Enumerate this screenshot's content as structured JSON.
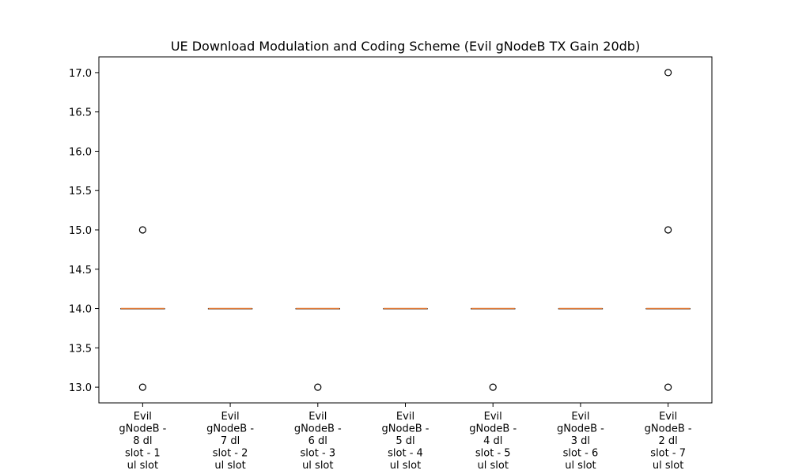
{
  "chart_data": {
    "type": "box",
    "title": "UE Download Modulation and Coding Scheme (Evil gNodeB TX Gain 20db)",
    "xlabel": "",
    "ylabel": "",
    "ylim": [
      12.8,
      17.2
    ],
    "yticks": [
      13.0,
      13.5,
      14.0,
      14.5,
      15.0,
      15.5,
      16.0,
      16.5,
      17.0
    ],
    "ytick_labels": [
      "13.0",
      "13.5",
      "14.0",
      "14.5",
      "15.0",
      "15.5",
      "16.0",
      "16.5",
      "17.0"
    ],
    "grid": false,
    "median_color": "#e07b39",
    "categories": [
      [
        "Evil",
        "gNodeB -",
        "8 dl",
        "slot - 1",
        "ul slot"
      ],
      [
        "Evil",
        "gNodeB -",
        "7 dl",
        "slot - 2",
        "ul slot"
      ],
      [
        "Evil",
        "gNodeB -",
        "6 dl",
        "slot - 3",
        "ul slot"
      ],
      [
        "Evil",
        "gNodeB -",
        "5 dl",
        "slot - 4",
        "ul slot"
      ],
      [
        "Evil",
        "gNodeB -",
        "4 dl",
        "slot - 5",
        "ul slot"
      ],
      [
        "Evil",
        "gNodeB -",
        "3 dl",
        "slot - 6",
        "ul slot"
      ],
      [
        "Evil",
        "gNodeB -",
        "2 dl",
        "slot - 7",
        "ul slot"
      ]
    ],
    "series": [
      {
        "q1": 14.0,
        "median": 14.0,
        "q3": 14.0,
        "whisker_low": 14.0,
        "whisker_high": 14.0,
        "outliers": [
          15.0,
          13.0
        ]
      },
      {
        "q1": 14.0,
        "median": 14.0,
        "q3": 14.0,
        "whisker_low": 14.0,
        "whisker_high": 14.0,
        "outliers": []
      },
      {
        "q1": 14.0,
        "median": 14.0,
        "q3": 14.0,
        "whisker_low": 14.0,
        "whisker_high": 14.0,
        "outliers": [
          13.0
        ]
      },
      {
        "q1": 14.0,
        "median": 14.0,
        "q3": 14.0,
        "whisker_low": 14.0,
        "whisker_high": 14.0,
        "outliers": []
      },
      {
        "q1": 14.0,
        "median": 14.0,
        "q3": 14.0,
        "whisker_low": 14.0,
        "whisker_high": 14.0,
        "outliers": [
          13.0
        ]
      },
      {
        "q1": 14.0,
        "median": 14.0,
        "q3": 14.0,
        "whisker_low": 14.0,
        "whisker_high": 14.0,
        "outliers": []
      },
      {
        "q1": 14.0,
        "median": 14.0,
        "q3": 14.0,
        "whisker_low": 14.0,
        "whisker_high": 14.0,
        "outliers": [
          17.0,
          15.0,
          13.0
        ]
      }
    ]
  }
}
